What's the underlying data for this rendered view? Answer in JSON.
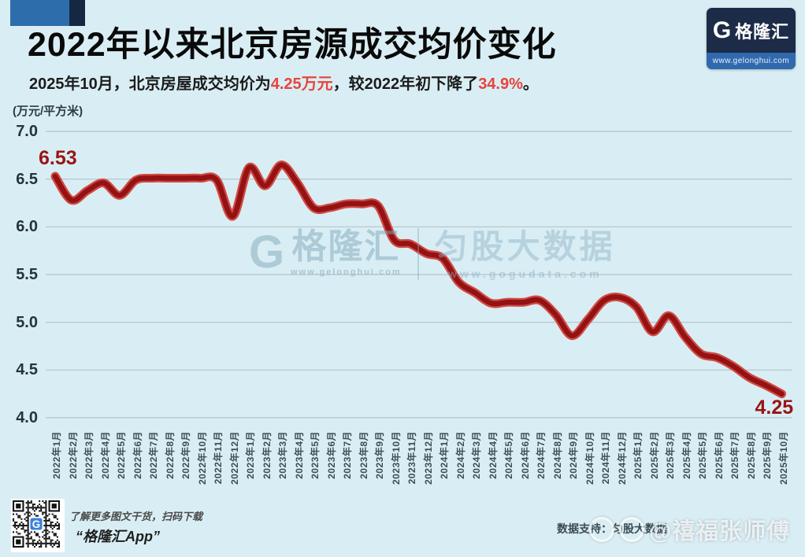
{
  "header": {
    "title": "2022年以来北京房源成交均价变化",
    "subtitle_parts": [
      {
        "text": "2025年10月，北京房屋成交均价为",
        "red": false
      },
      {
        "text": "4.25万元",
        "red": true
      },
      {
        "text": "，较2022年初下降了",
        "red": false
      },
      {
        "text": "34.9%",
        "red": true
      },
      {
        "text": "。",
        "red": false
      }
    ],
    "logo": {
      "g_letter": "G",
      "name": "格隆汇",
      "url": "www.gelonghui.com"
    }
  },
  "chart_data": {
    "type": "line",
    "title": "2022年以来北京房源成交均价变化",
    "unit_label": "(万元/平方米)",
    "ylabel": "万元/平方米",
    "ylim": [
      4.0,
      7.0
    ],
    "yticks": [
      "7.0",
      "6.5",
      "6.0",
      "5.5",
      "5.0",
      "4.5",
      "4.0"
    ],
    "grid": true,
    "categories": [
      "2022年1月",
      "2022年2月",
      "2022年3月",
      "2022年4月",
      "2022年5月",
      "2022年6月",
      "2022年7月",
      "2022年8月",
      "2022年9月",
      "2022年10月",
      "2022年11月",
      "2022年12月",
      "2023年1月",
      "2023年2月",
      "2023年3月",
      "2023年4月",
      "2023年5月",
      "2023年6月",
      "2023年7月",
      "2023年8月",
      "2023年9月",
      "2023年10月",
      "2023年11月",
      "2023年12月",
      "2024年1月",
      "2024年2月",
      "2024年3月",
      "2024年4月",
      "2024年5月",
      "2024年6月",
      "2024年7月",
      "2024年8月",
      "2024年9月",
      "2024年10月",
      "2024年11月",
      "2024年12月",
      "2025年1月",
      "2025年2月",
      "2025年3月",
      "2025年4月",
      "2025年5月",
      "2025年6月",
      "2025年7月",
      "2025年8月",
      "2025年9月",
      "2025年10月"
    ],
    "values": [
      6.53,
      6.28,
      6.38,
      6.46,
      6.33,
      6.49,
      6.51,
      6.51,
      6.51,
      6.51,
      6.49,
      6.11,
      6.62,
      6.43,
      6.65,
      6.46,
      6.2,
      6.2,
      6.24,
      6.24,
      6.22,
      5.86,
      5.82,
      5.72,
      5.67,
      5.42,
      5.31,
      5.2,
      5.21,
      5.21,
      5.23,
      5.08,
      4.86,
      5.03,
      5.23,
      5.26,
      5.16,
      4.9,
      5.07,
      4.85,
      4.67,
      4.63,
      4.54,
      4.42,
      4.34,
      4.25
    ],
    "point_labels": [
      {
        "index": 0,
        "text": "6.53"
      },
      {
        "index": 45,
        "text": "4.25"
      }
    ]
  },
  "watermark": {
    "g_letter": "G",
    "brand": "格隆汇",
    "brand_url": "www.gelonghui.com",
    "data_brand": "匀股大数据",
    "data_url": "www.gogudata.com"
  },
  "footer": {
    "qr_hint": "了解更多图文干货，扫码下载",
    "app_name": "“格隆汇App”",
    "data_support": "数据支持：匀股大数据",
    "weibo_watermark": "@禧福张师傅"
  },
  "colors": {
    "background": "#d9eef4",
    "line_core": "#941114",
    "line_halo": "#cf4a42",
    "point_label_red": "#9a1414",
    "accent_red": "#e8443c",
    "gridline": "#b3c3ca",
    "deco_blue": "#2e6dac",
    "deco_navy": "#152843",
    "logo_bar_blue": "#3069ae"
  }
}
